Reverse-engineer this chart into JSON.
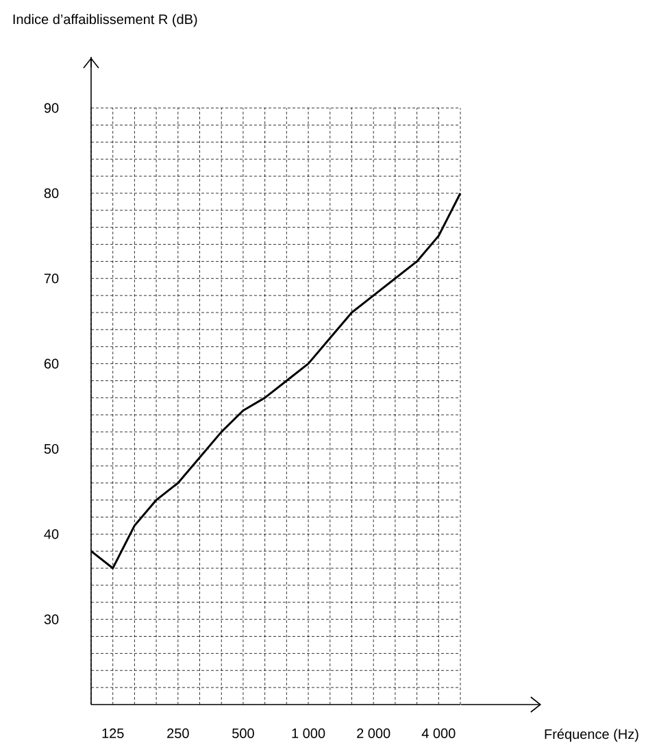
{
  "chart_data": {
    "type": "line",
    "annotations": [
      "Indice d’affaiblissement R (dB)",
      "Fréquence (Hz)"
    ],
    "categories": [
      null,
      "125",
      null,
      null,
      "250",
      null,
      null,
      "500",
      null,
      null,
      "1 000",
      null,
      null,
      "2 000",
      null,
      null,
      "4 000",
      null
    ],
    "series": [
      {
        "color": "#000000",
        "values": [
          38,
          36,
          41,
          44,
          46,
          49,
          52,
          54.5,
          56,
          58,
          60,
          63,
          66,
          68,
          70,
          72,
          75,
          80
        ]
      }
    ],
    "ylim": [
      20,
      96
    ],
    "yticks": [
      {
        "value": 22,
        "label": null
      },
      {
        "value": 24,
        "label": null
      },
      {
        "value": 26,
        "label": null
      },
      {
        "value": 28,
        "label": null
      },
      30,
      {
        "value": 32,
        "label": null
      },
      {
        "value": 34,
        "label": null
      },
      {
        "value": 36,
        "label": null
      },
      {
        "value": 38,
        "label": null
      },
      40,
      {
        "value": 42,
        "label": null
      },
      {
        "value": 44,
        "label": null
      },
      {
        "value": 46,
        "label": null
      },
      {
        "value": 48,
        "label": null
      },
      50,
      {
        "value": 52,
        "label": null
      },
      {
        "value": 54,
        "label": null
      },
      {
        "value": 56,
        "label": null
      },
      {
        "value": 58,
        "label": null
      },
      60,
      {
        "value": 62,
        "label": null
      },
      {
        "value": 64,
        "label": null
      },
      {
        "value": 66,
        "label": null
      },
      {
        "value": 68,
        "label": null
      },
      70,
      {
        "value": 72,
        "label": null
      },
      {
        "value": 74,
        "label": null
      },
      {
        "value": 76,
        "label": null
      },
      {
        "value": 78,
        "label": null
      },
      80,
      {
        "value": 82,
        "label": null
      },
      {
        "value": 84,
        "label": null
      },
      {
        "value": 86,
        "label": null
      },
      {
        "value": 88,
        "label": null
      },
      90
    ],
    "grid": true,
    "marker": "none",
    "line_style": "solid"
  }
}
